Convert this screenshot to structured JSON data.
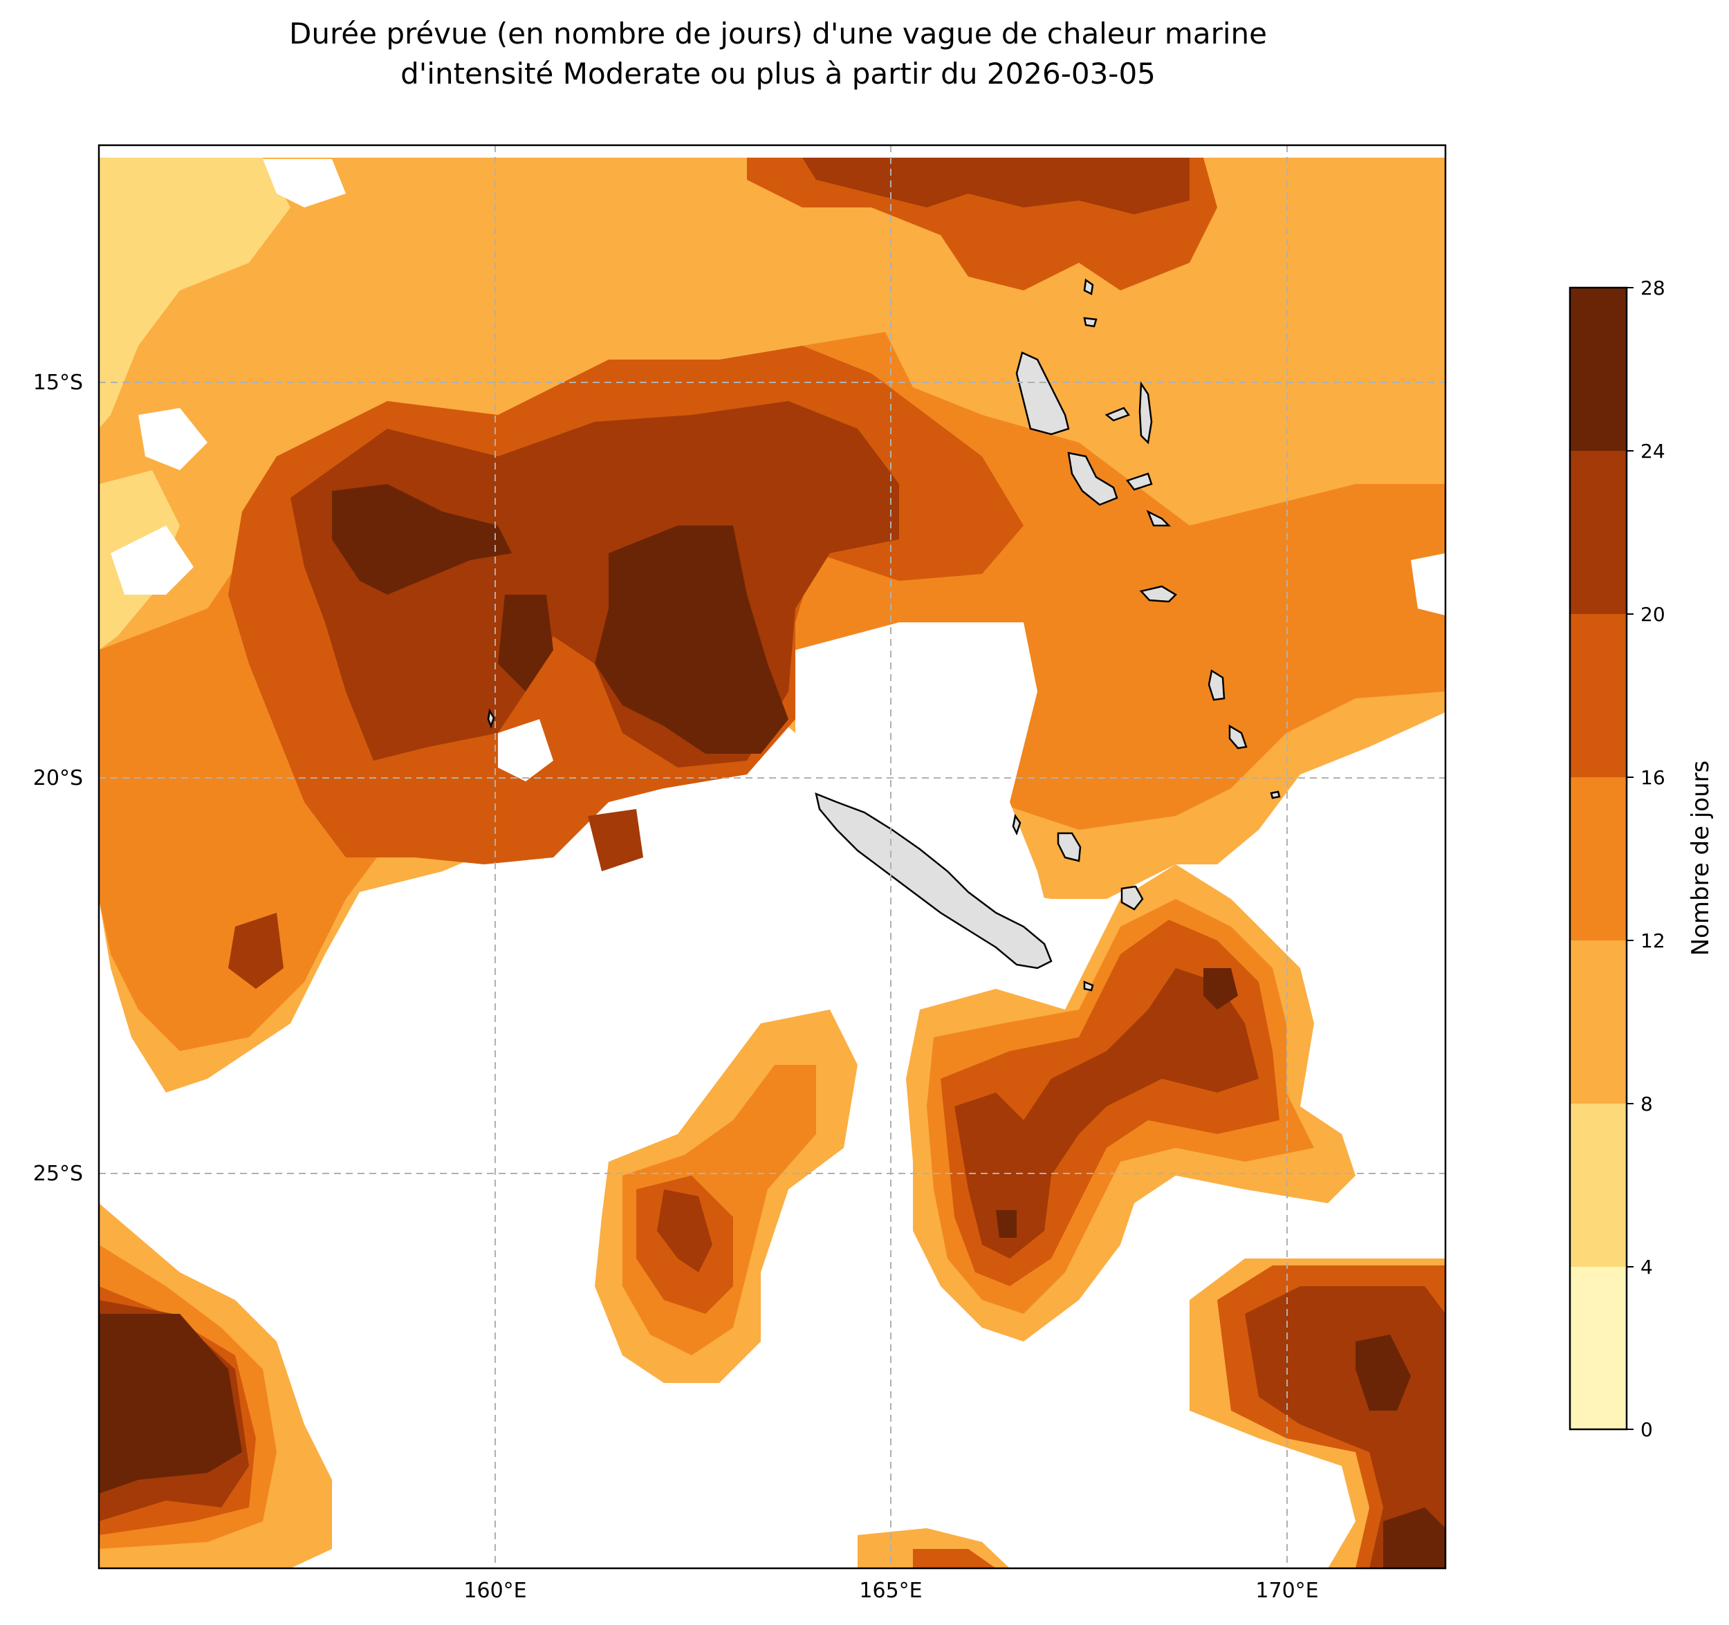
{
  "title": {
    "line1": "Durée prévue (en nombre de jours) d'une vague de chaleur marine",
    "line2": "d'intensité Moderate ou plus à partir du 2026-03-05"
  },
  "map": {
    "lon_range": [
      155,
      172
    ],
    "lat_range": [
      -30,
      -12
    ],
    "lon_ticks": [
      {
        "value": 160,
        "label": "160°E"
      },
      {
        "value": 165,
        "label": "165°E"
      },
      {
        "value": 170,
        "label": "170°E"
      }
    ],
    "lat_ticks": [
      {
        "value": -15,
        "label": "15°S"
      },
      {
        "value": -20,
        "label": "20°S"
      },
      {
        "value": -25,
        "label": "25°S"
      }
    ],
    "gridlines": true,
    "land_color": "#e0e0e0"
  },
  "colorbar": {
    "label": "Nombre de jours",
    "levels": [
      0,
      4,
      8,
      12,
      16,
      20,
      24,
      28
    ],
    "colors": [
      "#fff5b8",
      "#fdd97a",
      "#fbae42",
      "#f1861f",
      "#d35a0c",
      "#a33a07",
      "#6a2506"
    ]
  },
  "legend_colors": {
    "0": "#fff5b8",
    "4": "#fdd97a",
    "8": "#fbae42",
    "12": "#f1861f",
    "16": "#d35a0c",
    "20": "#a33a07",
    "24": "#6a2506"
  }
}
